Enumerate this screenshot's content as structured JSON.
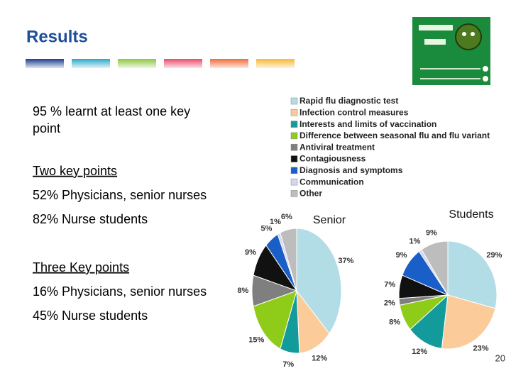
{
  "title": "Results",
  "text": {
    "point1": "95 % learnt at least one key point",
    "two_heading": "Two key points",
    "two_a": "52% Physicians, senior nurses",
    "two_b": "82% Nurse students",
    "three_heading": "Three Key points",
    "three_a": "16% Physicians, senior nurses",
    "three_b": "45% Nurse students"
  },
  "legend": {
    "labels": [
      "Rapid flu diagnostic test",
      "Infection control measures",
      "Interests and limits of vaccination",
      "Difference between seasonal flu and flu variant",
      "Antiviral treatment",
      "Contagiousness",
      "Diagnosis and symptoms",
      "Communication",
      "Other"
    ],
    "colors": [
      "#b3dde6",
      "#fbcb9a",
      "#139a9a",
      "#8fcc1a",
      "#7f7f7f",
      "#111111",
      "#1a5fc7",
      "#d3d6f0",
      "#bdbdbd"
    ]
  },
  "chart_data": [
    {
      "type": "pie",
      "title": "Senior",
      "values": [
        37,
        12,
        7,
        15,
        8,
        9,
        5,
        1,
        6
      ],
      "value_labels": [
        "37%",
        "12%",
        "7%",
        "15%",
        "8%",
        "9%",
        "5%",
        "1%",
        "6%"
      ]
    },
    {
      "type": "pie",
      "title": "Students",
      "values": [
        29,
        23,
        12,
        8,
        2,
        7,
        9,
        1,
        9
      ],
      "value_labels": [
        "29%",
        "23%",
        "12%",
        "8%",
        "2%",
        "7%",
        "9%",
        "1%",
        "9%"
      ]
    }
  ],
  "page_number": "20"
}
